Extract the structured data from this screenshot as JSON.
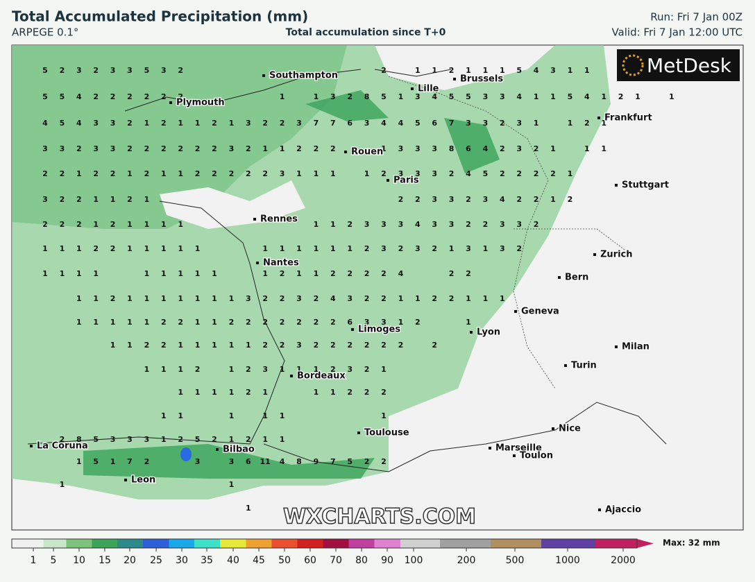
{
  "header": {
    "title": "Total Accumulated Precipitation (mm)",
    "model": "ARPEGE 0.1°",
    "subtitle": "Total accumulation since T+0",
    "run": "Run: Fri 7 Jan 00Z",
    "valid": "Valid: Fri 7 Jan 12:00 UTC"
  },
  "logo": "MetDesk",
  "watermark": "WXCHARTS.COM",
  "cities": [
    "Southampton",
    "Plymouth",
    "Brussels",
    "Lille",
    "Frankfurt",
    "Rouen",
    "Paris",
    "Stuttgart",
    "Rennes",
    "Nantes",
    "Zurich",
    "Bern",
    "Geneva",
    "Limoges",
    "Lyon",
    "Milan",
    "Turin",
    "Bordeaux",
    "Toulouse",
    "Nice",
    "La Coruna",
    "Marseille",
    "Toulon",
    "Bilbao",
    "Leon",
    "Ajaccio"
  ],
  "grid_values": [
    [
      5,
      2,
      3,
      2,
      3,
      3,
      5,
      3,
      2,
      null,
      null,
      null,
      null,
      null,
      null,
      null,
      null,
      null,
      null,
      null,
      2,
      null,
      1,
      1,
      2,
      1,
      1,
      1,
      5,
      4,
      3,
      1,
      1
    ],
    [
      5,
      5,
      4,
      2,
      2,
      2,
      2,
      2,
      2,
      null,
      null,
      null,
      null,
      null,
      1,
      null,
      1,
      3,
      2,
      8,
      5,
      1,
      3,
      4,
      5,
      5,
      3,
      3,
      4,
      1,
      1,
      5,
      4,
      1,
      2,
      1,
      null,
      1
    ],
    [
      4,
      5,
      4,
      3,
      3,
      2,
      1,
      2,
      1,
      1,
      2,
      1,
      3,
      2,
      2,
      3,
      7,
      7,
      6,
      3,
      4,
      4,
      5,
      6,
      7,
      3,
      3,
      2,
      3,
      1,
      null,
      1,
      2,
      1
    ],
    [
      3,
      3,
      2,
      3,
      3,
      2,
      2,
      2,
      2,
      2,
      2,
      3,
      2,
      1,
      1,
      2,
      2,
      2,
      null,
      null,
      1,
      3,
      3,
      3,
      8,
      6,
      4,
      2,
      3,
      2,
      1,
      null,
      1,
      1
    ],
    [
      2,
      2,
      1,
      2,
      2,
      1,
      2,
      1,
      1,
      2,
      2,
      2,
      2,
      2,
      3,
      1,
      1,
      1,
      null,
      1,
      2,
      3,
      3,
      3,
      2,
      4,
      5,
      2,
      2,
      2,
      2,
      1
    ],
    [
      3,
      2,
      2,
      1,
      1,
      2,
      1,
      null,
      null,
      null,
      null,
      null,
      null,
      null,
      null,
      null,
      null,
      null,
      null,
      null,
      null,
      2,
      2,
      3,
      3,
      2,
      3,
      4,
      2,
      2,
      1,
      2
    ],
    [
      2,
      2,
      2,
      1,
      2,
      1,
      1,
      1,
      1,
      null,
      null,
      null,
      null,
      null,
      null,
      null,
      1,
      1,
      2,
      3,
      3,
      3,
      4,
      3,
      3,
      2,
      2,
      3,
      3,
      2
    ],
    [
      1,
      1,
      1,
      2,
      2,
      1,
      1,
      1,
      1,
      1,
      null,
      null,
      null,
      1,
      1,
      1,
      1,
      1,
      1,
      2,
      3,
      2,
      3,
      2,
      1,
      3,
      1,
      3,
      2
    ],
    [
      1,
      1,
      1,
      1,
      null,
      null,
      1,
      1,
      1,
      1,
      1,
      null,
      null,
      1,
      2,
      1,
      1,
      2,
      2,
      2,
      2,
      4,
      null,
      null,
      2,
      2
    ],
    [
      null,
      null,
      1,
      1,
      2,
      1,
      1,
      1,
      1,
      1,
      1,
      1,
      3,
      2,
      2,
      3,
      2,
      4,
      3,
      2,
      2,
      1,
      1,
      2,
      2,
      1,
      1,
      1
    ],
    [
      null,
      null,
      1,
      1,
      1,
      1,
      1,
      2,
      2,
      1,
      1,
      2,
      2,
      2,
      2,
      2,
      2,
      2,
      6,
      3,
      3,
      1,
      2,
      null,
      null,
      1
    ],
    [
      null,
      null,
      null,
      null,
      1,
      1,
      2,
      2,
      1,
      1,
      1,
      1,
      1,
      2,
      2,
      3,
      2,
      2,
      2,
      2,
      2,
      2,
      null,
      2
    ],
    [
      null,
      null,
      null,
      null,
      null,
      null,
      1,
      1,
      1,
      2,
      null,
      1,
      2,
      3,
      1,
      1,
      1,
      2,
      3,
      2,
      1
    ],
    [
      null,
      null,
      null,
      null,
      null,
      null,
      null,
      null,
      1,
      1,
      1,
      1,
      2,
      1,
      null,
      null,
      1,
      1,
      2,
      2,
      2
    ],
    [
      null,
      null,
      null,
      null,
      null,
      null,
      null,
      1,
      1,
      null,
      null,
      1,
      null,
      1,
      1,
      null,
      null,
      null,
      null,
      null,
      1
    ],
    [
      null,
      2,
      8,
      5,
      3,
      3,
      3,
      1,
      2,
      5,
      2,
      1,
      2,
      1,
      1
    ],
    [
      null,
      null,
      1,
      5,
      1,
      7,
      2,
      null,
      null,
      3,
      null,
      3,
      6,
      11,
      4,
      8,
      9,
      7,
      5,
      2,
      2
    ],
    [
      null,
      1,
      null,
      null,
      null,
      null,
      null,
      null,
      null,
      null,
      null,
      1
    ],
    [
      null,
      null,
      null,
      null,
      null,
      null,
      null,
      null,
      null,
      null,
      null,
      null,
      1
    ]
  ],
  "colorbar": {
    "ticks": [
      1,
      5,
      10,
      15,
      20,
      25,
      30,
      35,
      40,
      45,
      50,
      60,
      70,
      80,
      90,
      100,
      200,
      500,
      1000,
      2000
    ],
    "max_label": "Max: 32 mm"
  }
}
